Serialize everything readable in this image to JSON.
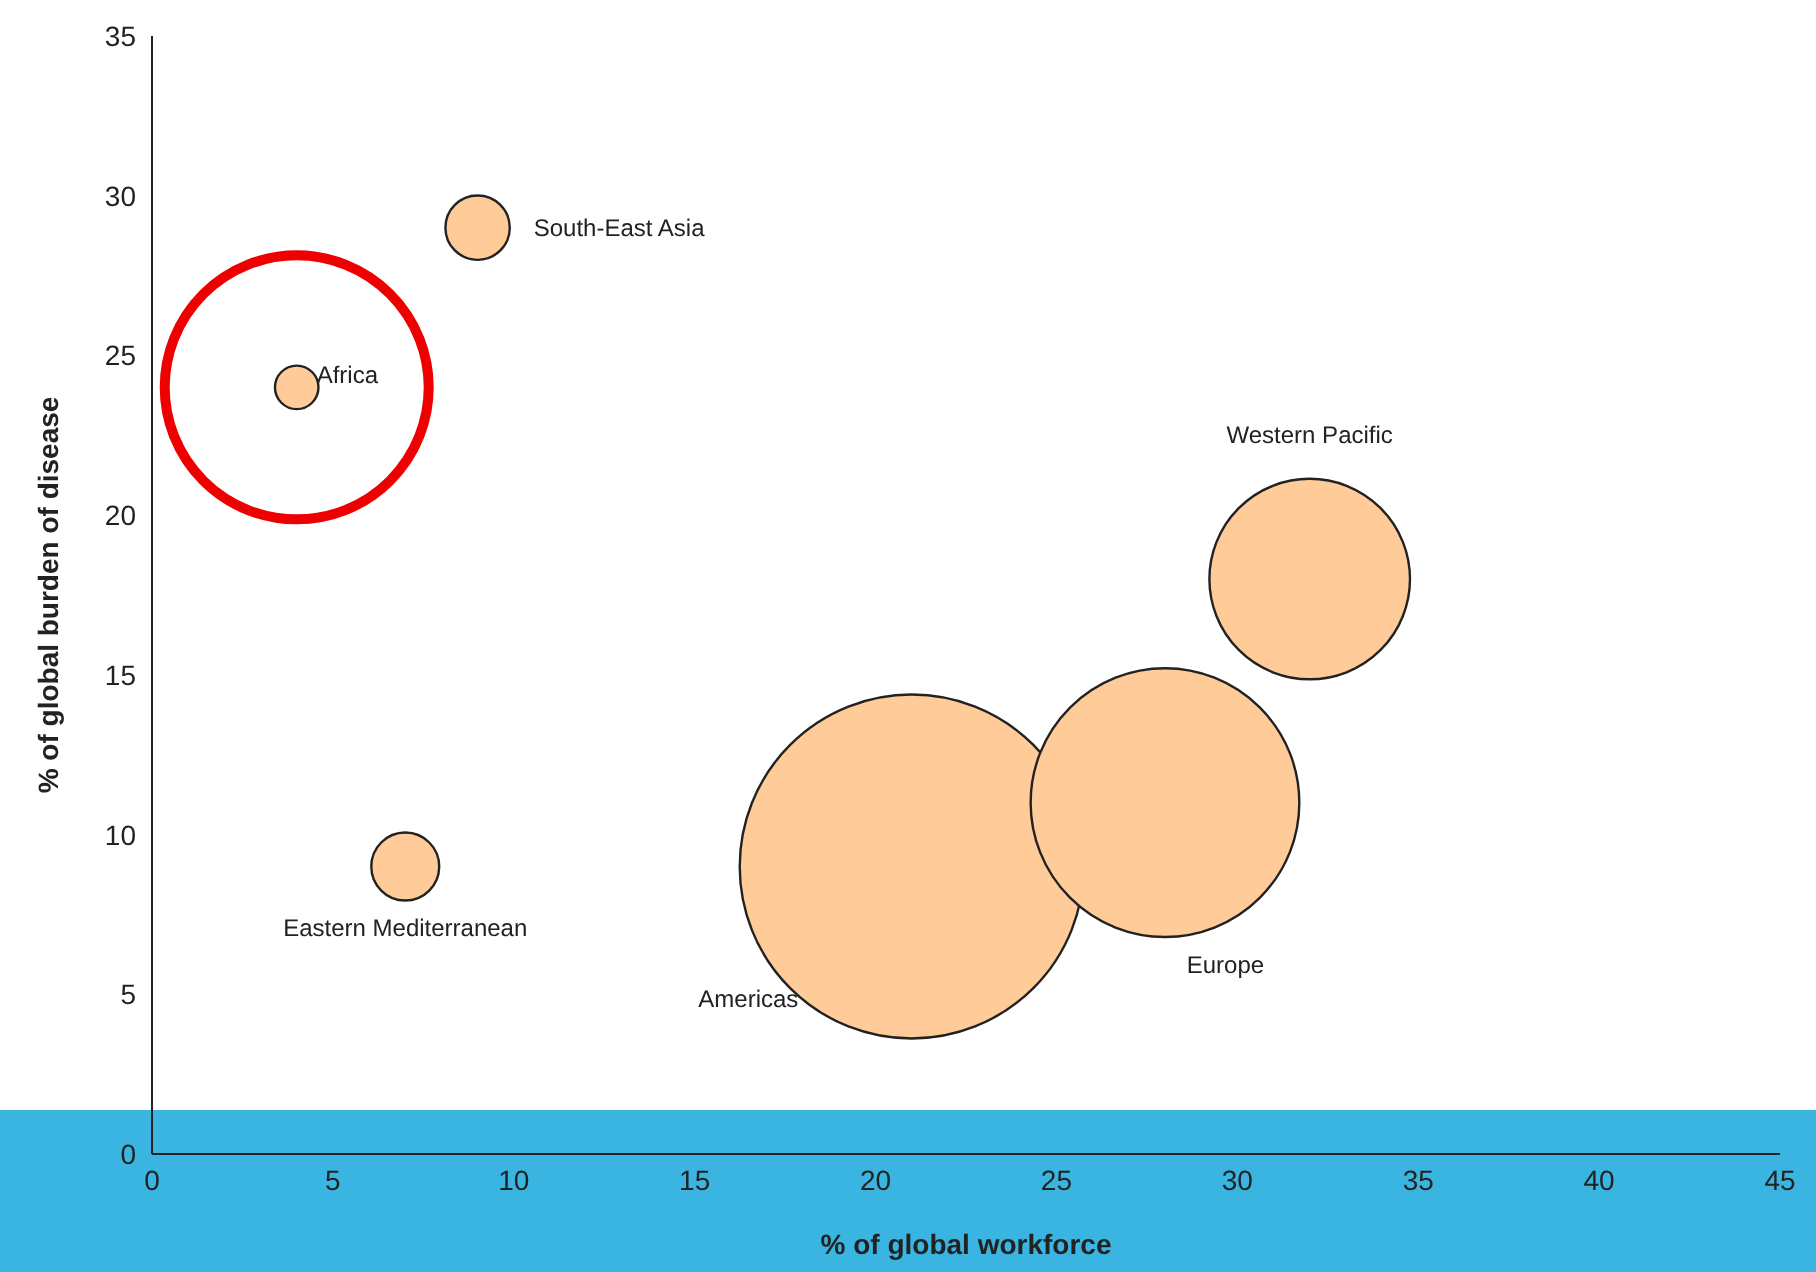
{
  "chart_data": {
    "type": "bubble",
    "xlabel": "% of global workforce",
    "ylabel": "% of global burden of disease",
    "xlim": [
      0,
      45
    ],
    "xticks": [
      0,
      5,
      10,
      15,
      20,
      25,
      30,
      35,
      40,
      45
    ],
    "ylim": [
      0,
      35
    ],
    "yticks": [
      0,
      5,
      10,
      15,
      20,
      25,
      30,
      35
    ],
    "grid": false,
    "legend": false,
    "series": [
      {
        "name": "Africa",
        "color": "#ffcc99",
        "x": [
          4
        ],
        "values": [
          24
        ],
        "sizes": [
          0.016
        ]
      },
      {
        "name": "South-East Asia",
        "color": "#ffcc99",
        "x": [
          9
        ],
        "values": [
          29
        ],
        "sizes": [
          0.035
        ]
      },
      {
        "name": "Eastern Mediterranean",
        "color": "#ffcc99",
        "x": [
          7
        ],
        "values": [
          9
        ],
        "sizes": [
          0.039
        ]
      },
      {
        "name": "Americas",
        "color": "#ffcc99",
        "x": [
          21
        ],
        "values": [
          9
        ],
        "sizes": [
          1
        ]
      },
      {
        "name": "Europe",
        "color": "#ffcc99",
        "x": [
          28
        ],
        "values": [
          11
        ],
        "sizes": [
          0.61
        ]
      },
      {
        "name": "Western Pacific",
        "color": "#ffcc99",
        "x": [
          32
        ],
        "values": [
          18
        ],
        "sizes": [
          0.34
        ]
      }
    ]
  }
}
